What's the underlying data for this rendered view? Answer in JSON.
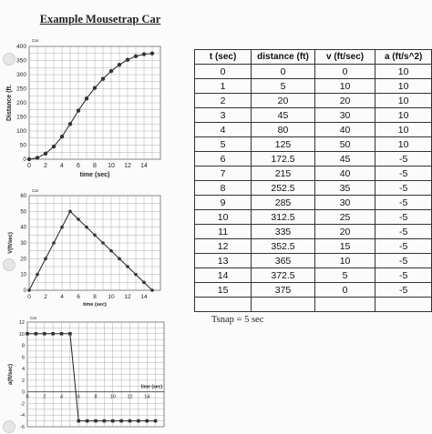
{
  "page": {
    "title": "Example Mousetrap Car",
    "tsnap": "Tsnap = 5 sec"
  },
  "chart_data": [
    {
      "type": "line",
      "title": "Car",
      "xlabel": "time (sec)",
      "ylabel": "Distance (ft.",
      "xlim": [
        0,
        16
      ],
      "ylim": [
        0,
        400
      ],
      "xticks": [
        "0",
        "2",
        "4",
        "6",
        "8",
        "10",
        "12",
        "14"
      ],
      "yticks": [
        "0",
        "50",
        "100",
        "150",
        "200",
        "250",
        "300",
        "350",
        "400"
      ],
      "grid": true,
      "x": [
        0,
        1,
        2,
        3,
        4,
        5,
        6,
        7,
        8,
        9,
        10,
        11,
        12,
        13,
        14,
        15
      ],
      "series": [
        {
          "values": [
            0,
            5,
            20,
            45,
            80,
            125,
            172.5,
            215,
            252.5,
            285,
            312.5,
            335,
            352.5,
            365,
            372.5,
            375
          ]
        }
      ]
    },
    {
      "type": "line",
      "title": "Car",
      "xlabel": "time (sec)",
      "ylabel": "V(ft/sec)",
      "xlim": [
        0,
        16
      ],
      "ylim": [
        0,
        60
      ],
      "xticks": [
        "0",
        "2",
        "4",
        "6",
        "8",
        "10",
        "12",
        "14"
      ],
      "yticks": [
        "0",
        "10",
        "20",
        "30",
        "40",
        "50",
        "60"
      ],
      "grid": true,
      "x": [
        0,
        1,
        2,
        3,
        4,
        5,
        6,
        7,
        8,
        9,
        10,
        11,
        12,
        13,
        14,
        15
      ],
      "series": [
        {
          "values": [
            0,
            10,
            20,
            30,
            40,
            50,
            45,
            40,
            35,
            30,
            25,
            20,
            15,
            10,
            5,
            0
          ]
        }
      ]
    },
    {
      "type": "line",
      "title": "Car",
      "xlabel": "time (sec)",
      "ylabel": "a(ft/sec)",
      "xlim": [
        0,
        16
      ],
      "ylim": [
        -6,
        12
      ],
      "xticks": [
        "0",
        "2",
        "4",
        "6",
        "8",
        "10",
        "12",
        "14"
      ],
      "yticks": [
        "-6",
        "-4",
        "-2",
        "0",
        "2",
        "4",
        "6",
        "8",
        "10",
        "12"
      ],
      "grid": true,
      "x": [
        0,
        1,
        2,
        3,
        4,
        5,
        6,
        7,
        8,
        9,
        10,
        11,
        12,
        13,
        14,
        15
      ],
      "series": [
        {
          "values": [
            10,
            10,
            10,
            10,
            10,
            10,
            -5,
            -5,
            -5,
            -5,
            -5,
            -5,
            -5,
            -5,
            -5,
            -5
          ]
        }
      ]
    },
    {
      "type": "table",
      "headers": [
        "t (sec)",
        "distance (ft)",
        "v (ft/sec)",
        "a (ft/s^2)"
      ],
      "rows": [
        [
          "0",
          "0",
          "0",
          "10"
        ],
        [
          "1",
          "5",
          "10",
          "10"
        ],
        [
          "2",
          "20",
          "20",
          "10"
        ],
        [
          "3",
          "45",
          "30",
          "10"
        ],
        [
          "4",
          "80",
          "40",
          "10"
        ],
        [
          "5",
          "125",
          "50",
          "10"
        ],
        [
          "6",
          "172.5",
          "45",
          "-5"
        ],
        [
          "7",
          "215",
          "40",
          "-5"
        ],
        [
          "8",
          "252.5",
          "35",
          "-5"
        ],
        [
          "9",
          "285",
          "30",
          "-5"
        ],
        [
          "10",
          "312.5",
          "25",
          "-5"
        ],
        [
          "11",
          "335",
          "20",
          "-5"
        ],
        [
          "12",
          "352.5",
          "15",
          "-5"
        ],
        [
          "13",
          "365",
          "10",
          "-5"
        ],
        [
          "14",
          "372.5",
          "5",
          "-5"
        ],
        [
          "15",
          "375",
          "0",
          "-5"
        ],
        [
          "",
          "",
          "",
          ""
        ]
      ]
    }
  ]
}
